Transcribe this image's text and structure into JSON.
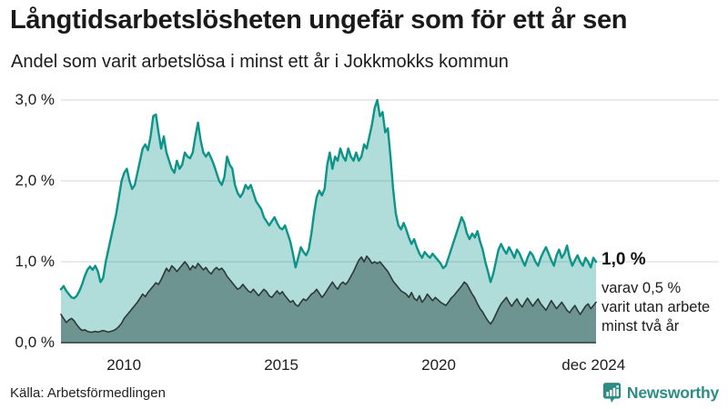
{
  "header": {
    "title": "Långtidsarbetslösheten ungefär som för ett år sen",
    "subtitle": "Andel som varit arbetslösa i minst ett år i Jokkmokks kommun"
  },
  "annotation": {
    "latest_value": "1,0 %",
    "lines": [
      "varav 0,5 %",
      "varit utan arbete",
      "minst två år"
    ]
  },
  "footer": {
    "source": "Källa: Arbetsförmedlingen",
    "brand": "Newsworthy"
  },
  "colors": {
    "accent_teal": "#0d9488",
    "area_light_fill": "rgba(16,150,140,0.33)",
    "area_dark_fill": "rgba(47,82,77,0.52)",
    "line_dark": "#2c3937",
    "grid": "#d9dde1",
    "axis": "#2c3937",
    "brand_teal": "#2e8c86",
    "text": "#1a1a1a"
  },
  "chart_data": {
    "type": "area",
    "title": "Långtidsarbetslösheten ungefär som för ett år sen",
    "subtitle": "Andel som varit arbetslösa i minst ett år i Jokkmokks kommun",
    "x_unit": "month",
    "x_start": "2008-01",
    "x_end": "2024-12",
    "x_domain": [
      2008.0,
      2025.0
    ],
    "ylim": [
      0,
      3.2
    ],
    "grid": "horizontal",
    "legend_position": "right-annotation",
    "yticks": [
      {
        "label": "0,0 %",
        "value": 0
      },
      {
        "label": "1,0 %",
        "value": 1
      },
      {
        "label": "2,0 %",
        "value": 2
      },
      {
        "label": "3,0 %",
        "value": 3
      }
    ],
    "xticks": [
      {
        "label": "2010",
        "year": 2010.0
      },
      {
        "label": "2015",
        "year": 2015.0
      },
      {
        "label": "2020",
        "year": 2020.0
      },
      {
        "label": "dec 2024",
        "year": 2024.92
      }
    ],
    "series": [
      {
        "name": "Andel arbetslösa minst ett år",
        "stroke": "#0d9488",
        "stroke_width": 2.4,
        "fill": "rgba(16,150,140,0.33)",
        "end_label": "1,0 %",
        "values": [
          0.66,
          0.7,
          0.64,
          0.6,
          0.56,
          0.55,
          0.58,
          0.64,
          0.72,
          0.82,
          0.9,
          0.94,
          0.9,
          0.95,
          0.88,
          0.75,
          0.8,
          1.0,
          1.15,
          1.3,
          1.45,
          1.6,
          1.8,
          2.0,
          2.1,
          2.15,
          2.0,
          1.9,
          1.95,
          2.1,
          2.25,
          2.4,
          2.45,
          2.38,
          2.55,
          2.8,
          2.82,
          2.6,
          2.4,
          2.55,
          2.35,
          2.25,
          2.15,
          2.1,
          2.25,
          2.15,
          2.2,
          2.35,
          2.3,
          2.28,
          2.35,
          2.55,
          2.72,
          2.5,
          2.35,
          2.3,
          2.35,
          2.28,
          2.2,
          2.1,
          2.0,
          1.95,
          2.05,
          2.3,
          2.2,
          2.15,
          1.95,
          1.85,
          1.8,
          1.85,
          1.95,
          1.9,
          1.95,
          1.85,
          1.75,
          1.7,
          1.65,
          1.55,
          1.5,
          1.45,
          1.5,
          1.55,
          1.48,
          1.42,
          1.4,
          1.45,
          1.35,
          1.25,
          1.1,
          0.93,
          1.05,
          1.18,
          1.12,
          1.08,
          1.15,
          1.35,
          1.6,
          1.8,
          1.88,
          1.82,
          1.9,
          2.2,
          2.35,
          2.15,
          2.3,
          2.25,
          2.4,
          2.3,
          2.25,
          2.4,
          2.3,
          2.25,
          2.35,
          2.25,
          2.3,
          2.45,
          2.4,
          2.55,
          2.7,
          2.9,
          3.0,
          2.8,
          2.85,
          2.6,
          2.65,
          2.3,
          1.9,
          1.6,
          1.45,
          1.4,
          1.48,
          1.4,
          1.3,
          1.22,
          1.28,
          1.18,
          1.1,
          1.05,
          1.12,
          1.08,
          1.05,
          1.1,
          1.06,
          1.02,
          0.98,
          0.92,
          0.95,
          1.05,
          1.15,
          1.25,
          1.35,
          1.45,
          1.55,
          1.48,
          1.35,
          1.28,
          1.35,
          1.3,
          1.38,
          1.25,
          1.15,
          1.0,
          0.88,
          0.75,
          0.85,
          1.0,
          1.15,
          1.22,
          1.15,
          1.1,
          1.18,
          1.12,
          1.05,
          1.15,
          1.1,
          1.02,
          0.95,
          1.05,
          1.12,
          1.08,
          1.0,
          0.95,
          1.05,
          1.12,
          1.18,
          1.1,
          1.02,
          0.95,
          1.08,
          1.15,
          1.05,
          1.1,
          1.2,
          1.05,
          0.95,
          1.02,
          1.08,
          1.0,
          0.95,
          1.05,
          1.0,
          0.93,
          1.05,
          1.0
        ]
      },
      {
        "name": "varav utan arbete minst två år",
        "stroke": "#2c3937",
        "stroke_width": 1.6,
        "fill": "rgba(47,82,77,0.52)",
        "end_label": "0,5 %",
        "values": [
          0.35,
          0.3,
          0.25,
          0.28,
          0.3,
          0.27,
          0.22,
          0.18,
          0.15,
          0.16,
          0.14,
          0.13,
          0.13,
          0.14,
          0.13,
          0.14,
          0.15,
          0.14,
          0.13,
          0.14,
          0.15,
          0.17,
          0.2,
          0.24,
          0.3,
          0.34,
          0.38,
          0.42,
          0.46,
          0.5,
          0.55,
          0.6,
          0.57,
          0.62,
          0.66,
          0.7,
          0.74,
          0.72,
          0.78,
          0.85,
          0.92,
          0.88,
          0.95,
          0.92,
          0.88,
          0.92,
          0.96,
          1.0,
          0.96,
          0.9,
          0.95,
          0.92,
          0.98,
          0.94,
          0.9,
          0.93,
          0.88,
          0.85,
          0.9,
          0.93,
          0.9,
          0.92,
          0.88,
          0.82,
          0.78,
          0.74,
          0.7,
          0.66,
          0.68,
          0.72,
          0.68,
          0.64,
          0.62,
          0.66,
          0.62,
          0.58,
          0.62,
          0.66,
          0.63,
          0.58,
          0.56,
          0.6,
          0.64,
          0.6,
          0.63,
          0.58,
          0.54,
          0.5,
          0.52,
          0.47,
          0.45,
          0.5,
          0.54,
          0.52,
          0.56,
          0.6,
          0.62,
          0.66,
          0.61,
          0.56,
          0.6,
          0.65,
          0.7,
          0.75,
          0.7,
          0.66,
          0.72,
          0.75,
          0.72,
          0.76,
          0.82,
          0.88,
          0.95,
          1.02,
          1.06,
          1.0,
          1.07,
          1.03,
          0.98,
          1.0,
          0.98,
          1.0,
          0.96,
          0.92,
          0.88,
          0.82,
          0.76,
          0.72,
          0.68,
          0.64,
          0.62,
          0.6,
          0.56,
          0.62,
          0.55,
          0.52,
          0.58,
          0.5,
          0.54,
          0.6,
          0.56,
          0.52,
          0.56,
          0.53,
          0.5,
          0.48,
          0.46,
          0.5,
          0.55,
          0.58,
          0.62,
          0.66,
          0.7,
          0.75,
          0.72,
          0.66,
          0.6,
          0.55,
          0.48,
          0.42,
          0.38,
          0.32,
          0.27,
          0.23,
          0.28,
          0.35,
          0.42,
          0.48,
          0.52,
          0.56,
          0.5,
          0.45,
          0.5,
          0.54,
          0.48,
          0.44,
          0.5,
          0.55,
          0.5,
          0.45,
          0.5,
          0.54,
          0.48,
          0.44,
          0.4,
          0.46,
          0.52,
          0.47,
          0.42,
          0.46,
          0.5,
          0.45,
          0.4,
          0.37,
          0.42,
          0.46,
          0.4,
          0.35,
          0.4,
          0.45,
          0.48,
          0.42,
          0.46,
          0.5
        ]
      }
    ]
  }
}
